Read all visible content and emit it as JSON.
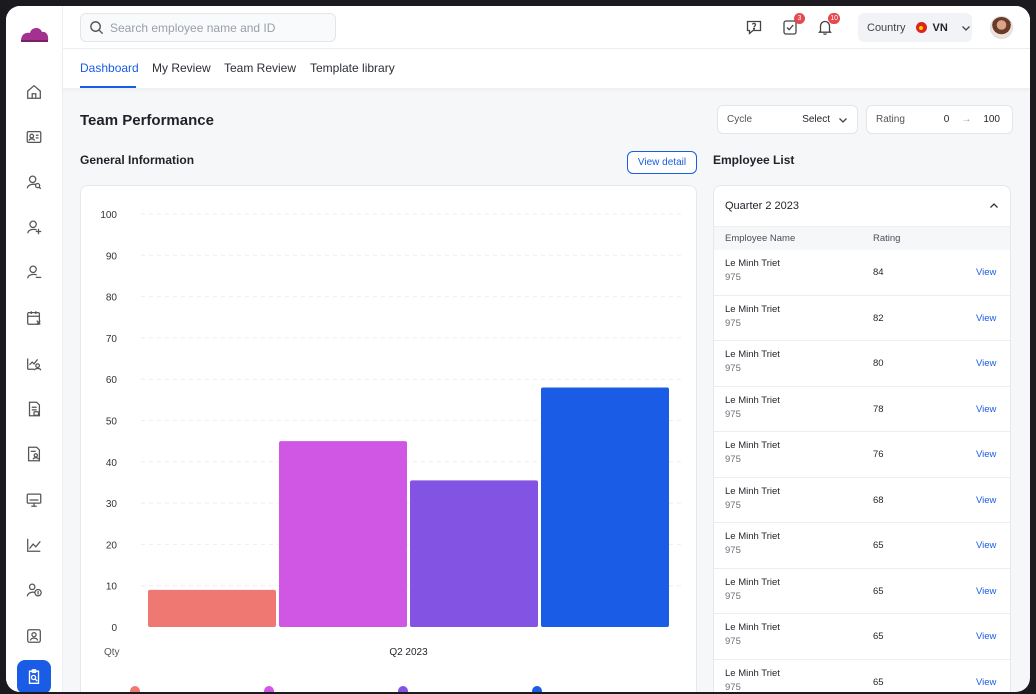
{
  "header": {
    "search_placeholder": "Search employee name and ID",
    "check_badge": "3",
    "bell_badge": "10",
    "country_label": "Country",
    "country_value": "VN"
  },
  "tabs": [
    {
      "label": "Dashboard",
      "active": true
    },
    {
      "label": "My Review"
    },
    {
      "label": "Team Review"
    },
    {
      "label": "Template library"
    }
  ],
  "page": {
    "title": "Team Performance",
    "cycle_label": "Cycle",
    "cycle_value": "Select",
    "rating_label": "Rating",
    "rating_min": "0",
    "rating_max": "100",
    "general_title": "General Information",
    "view_detail": "View detail",
    "employee_list_title": "Employee List"
  },
  "chart_data": {
    "type": "bar",
    "categories": [
      "Q2 2023"
    ],
    "series": [
      {
        "values": [
          9
        ],
        "color": "#ef7873"
      },
      {
        "values": [
          45
        ],
        "color": "#cf57e3"
      },
      {
        "values": [
          35.5
        ],
        "color": "#8354e3"
      },
      {
        "values": [
          58
        ],
        "color": "#1a5ce5"
      }
    ],
    "ylabel": "Qty",
    "ylim": [
      0,
      100
    ],
    "yticks": [
      0,
      10,
      20,
      30,
      40,
      50,
      60,
      70,
      80,
      90,
      100
    ],
    "grid": true
  },
  "employees": {
    "group": "Quarter 2 2023",
    "col_name": "Employee Name",
    "col_rating": "Rating",
    "rows": [
      {
        "name": "Le Minh Triet",
        "id": "975",
        "rating": "84",
        "action": "View"
      },
      {
        "name": "Le Minh Triet",
        "id": "975",
        "rating": "82",
        "action": "View"
      },
      {
        "name": "Le Minh Triet",
        "id": "975",
        "rating": "80",
        "action": "View"
      },
      {
        "name": "Le Minh Triet",
        "id": "975",
        "rating": "78",
        "action": "View"
      },
      {
        "name": "Le Minh Triet",
        "id": "975",
        "rating": "76",
        "action": "View"
      },
      {
        "name": "Le Minh Triet",
        "id": "975",
        "rating": "68",
        "action": "View"
      },
      {
        "name": "Le Minh Triet",
        "id": "975",
        "rating": "65",
        "action": "View"
      },
      {
        "name": "Le Minh Triet",
        "id": "975",
        "rating": "65",
        "action": "View"
      },
      {
        "name": "Le Minh Triet",
        "id": "975",
        "rating": "65",
        "action": "View"
      },
      {
        "name": "Le Minh Triet",
        "id": "975",
        "rating": "65",
        "action": "View"
      }
    ]
  },
  "sidebar": {
    "icons": [
      "home-icon",
      "id-card-icon",
      "user-search-icon",
      "user-add-icon",
      "user-remove-icon",
      "calendar-x-icon",
      "chart-user-icon",
      "document-icon",
      "document-user-icon",
      "monitor-icon",
      "line-chart-icon",
      "salary-icon",
      "user-document-icon",
      "performance-review-icon"
    ]
  },
  "colors": {
    "accent": "#1a5ce5",
    "brand": "#a2318f"
  }
}
